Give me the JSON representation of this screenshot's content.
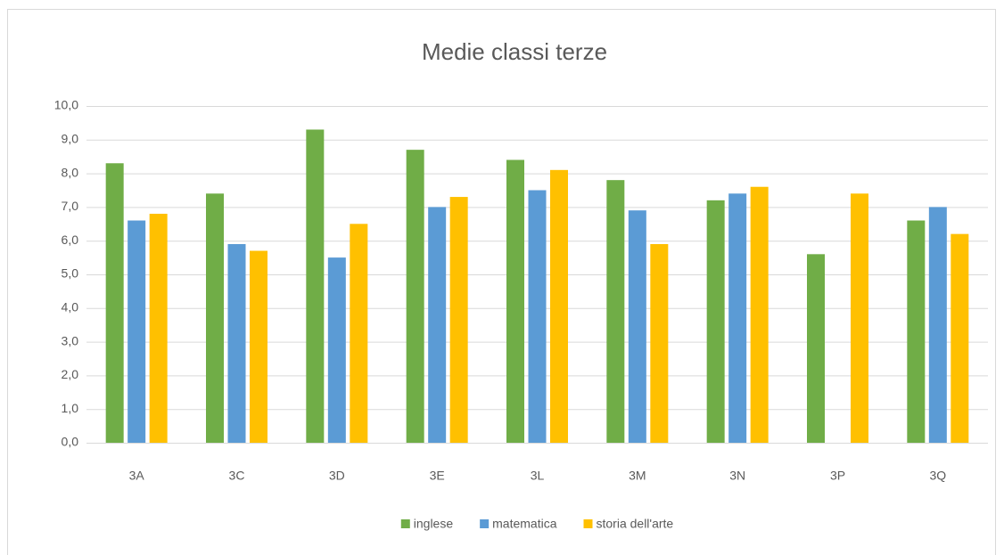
{
  "chart_data": {
    "type": "bar",
    "title": "Medie classi terze",
    "categories": [
      "3A",
      "3C",
      "3D",
      "3E",
      "3L",
      "3M",
      "3N",
      "3P",
      "3Q"
    ],
    "series": [
      {
        "name": "inglese",
        "color": "#70ad47",
        "values": [
          8.3,
          7.4,
          9.3,
          8.7,
          8.4,
          7.8,
          7.2,
          5.6,
          6.6
        ]
      },
      {
        "name": "matematica",
        "color": "#5b9bd5",
        "values": [
          6.6,
          5.9,
          5.5,
          7.0,
          7.5,
          6.9,
          7.4,
          null,
          7.0
        ]
      },
      {
        "name": "storia dell'arte",
        "color": "#ffc000",
        "values": [
          6.8,
          5.7,
          6.5,
          7.3,
          8.1,
          5.9,
          7.6,
          7.4,
          6.2
        ]
      }
    ],
    "ylim": [
      0,
      10
    ],
    "yticks": [
      {
        "value": 0,
        "label": "0,0"
      },
      {
        "value": 1,
        "label": "1,0"
      },
      {
        "value": 2,
        "label": "2,0"
      },
      {
        "value": 3,
        "label": "3,0"
      },
      {
        "value": 4,
        "label": "4,0"
      },
      {
        "value": 5,
        "label": "5,0"
      },
      {
        "value": 6,
        "label": "6,0"
      },
      {
        "value": 7,
        "label": "7,0"
      },
      {
        "value": 8,
        "label": "8,0"
      },
      {
        "value": 9,
        "label": "9,0"
      },
      {
        "value": 10,
        "label": "10,0"
      }
    ],
    "grid": true,
    "legend": "bottom"
  }
}
